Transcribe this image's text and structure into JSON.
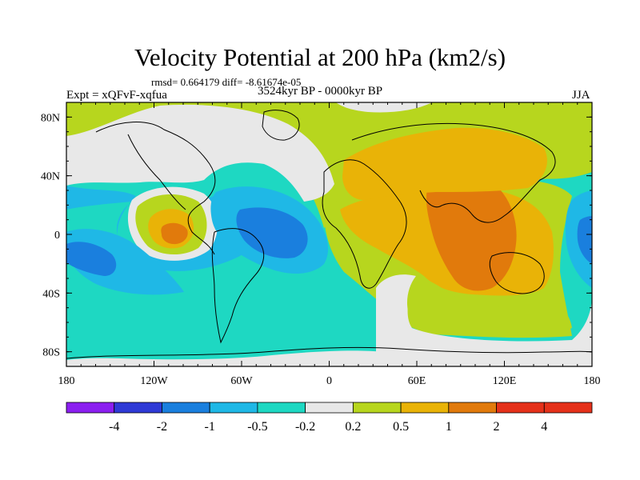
{
  "header": {
    "title": "Velocity Potential at 200 hPa (km2/s)",
    "stats": "rmsd= 0.664179 diff= -8.61674e-05",
    "experiment": "Expt = xQFvF-xqfua",
    "period": "3524kyr BP - 0000kyr BP",
    "season": "JJA"
  },
  "map": {
    "lon_ticks": [
      "180",
      "120W",
      "60W",
      "0",
      "60E",
      "120E",
      "180"
    ],
    "lat_ticks": [
      "80N",
      "40N",
      "0",
      "40S",
      "80S"
    ]
  },
  "colorbar": {
    "labels": [
      "-4",
      "-2",
      "-1",
      "-0.5",
      "-0.2",
      "0.2",
      "0.5",
      "1",
      "2",
      "4"
    ],
    "colors": [
      "#8b1ff0",
      "#2f3ad6",
      "#1a7fde",
      "#1fb8e6",
      "#1ed8c2",
      "#e8e8e8",
      "#b7d61e",
      "#e9b307",
      "#e17a0c",
      "#e5311a"
    ]
  }
}
